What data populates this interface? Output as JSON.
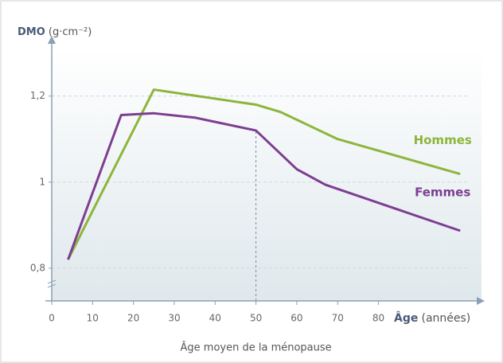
{
  "chart_data": {
    "type": "line",
    "y_label": "DMO",
    "y_unit": "(g·cm⁻²)",
    "x_label": "Âge",
    "x_unit": "(années)",
    "annotation": {
      "text": "Âge moyen de la ménopause",
      "x": 50
    },
    "xlim": [
      0,
      106
    ],
    "xticks": [
      0,
      10,
      20,
      30,
      40,
      50,
      60,
      70,
      80
    ],
    "ylim": [
      0.724,
      1.34
    ],
    "yticks": [
      {
        "value": 0.8,
        "label": "0,8"
      },
      1,
      {
        "value": 1.2,
        "label": "1,2"
      }
    ],
    "grid": true,
    "series": [
      {
        "name": "Hommes",
        "color": "#8db53c",
        "x": [
          4,
          25,
          50,
          56,
          70,
          100
        ],
        "values": [
          0.82,
          1.215,
          1.18,
          1.163,
          1.1,
          1.019
        ]
      },
      {
        "name": "Femmes",
        "color": "#7d3e91",
        "x": [
          4,
          17,
          25,
          35,
          50,
          60,
          67,
          100
        ],
        "values": [
          0.82,
          1.156,
          1.16,
          1.15,
          1.12,
          1.03,
          0.994,
          0.887
        ]
      }
    ]
  }
}
